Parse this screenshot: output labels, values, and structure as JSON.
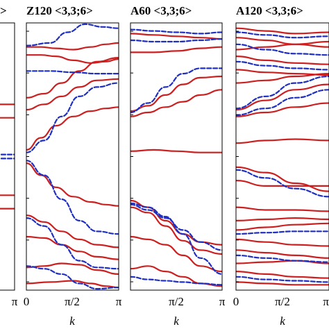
{
  "chart_data": [
    {
      "type": "line",
      "title": "",
      "xlabel": "",
      "x_ticks": [
        "π"
      ],
      "xlim": [
        0,
        3.1416
      ],
      "ylim": [
        -1,
        1
      ],
      "colors": {
        "solid": "#cc1f1f",
        "dashed": "#1f2fbf"
      },
      "series": [
        {
          "style": "solid",
          "x": [
            0,
            3.1416
          ],
          "y": [
            0.39,
            0.39
          ]
        },
        {
          "style": "solid",
          "x": [
            0,
            3.1416
          ],
          "y": [
            0.29,
            0.29
          ]
        },
        {
          "style": "solid",
          "x": [
            0,
            3.1416
          ],
          "y": [
            -0.29,
            -0.29
          ]
        },
        {
          "style": "solid",
          "x": [
            0,
            3.1416
          ],
          "y": [
            -0.39,
            -0.39
          ]
        },
        {
          "style": "dashed",
          "x": [
            0,
            3.1416
          ],
          "y": [
            0.015,
            0.015
          ]
        },
        {
          "style": "dashed",
          "x": [
            0,
            3.1416
          ],
          "y": [
            -0.015,
            -0.015
          ]
        }
      ]
    },
    {
      "type": "line",
      "title": "Z120 <3,3;6>",
      "xlabel": "k",
      "x_ticks": [
        "0",
        "π/2",
        "π"
      ],
      "xlim": [
        0,
        3.1416
      ],
      "ylim": [
        -1,
        1
      ],
      "colors": {
        "solid": "#cc1f1f",
        "dashed": "#1f2fbf"
      },
      "series": [
        {
          "style": "solid",
          "x": [
            0,
            0.5,
            1.0,
            1.6,
            2.2,
            2.7,
            3.1416
          ],
          "y": [
            0.82,
            0.82,
            0.81,
            0.8,
            0.82,
            0.84,
            0.85
          ]
        },
        {
          "style": "solid",
          "x": [
            0,
            0.5,
            1.0,
            1.6,
            2.2,
            2.7,
            3.1416
          ],
          "y": [
            0.76,
            0.76,
            0.75,
            0.72,
            0.7,
            0.71,
            0.73
          ]
        },
        {
          "style": "solid",
          "x": [
            0,
            0.6,
            1.2,
            1.8,
            2.4,
            3.1416
          ],
          "y": [
            0.44,
            0.47,
            0.55,
            0.64,
            0.71,
            0.74
          ]
        },
        {
          "style": "solid",
          "x": [
            0,
            0.6,
            1.2,
            1.8,
            2.4,
            3.1416
          ],
          "y": [
            0.35,
            0.39,
            0.45,
            0.52,
            0.57,
            0.58
          ]
        },
        {
          "style": "solid",
          "x": [
            0,
            0.5,
            1.0,
            1.6,
            2.2,
            2.7,
            3.1416
          ],
          "y": [
            0.05,
            0.14,
            0.23,
            0.3,
            0.34,
            0.36,
            0.37
          ]
        },
        {
          "style": "solid",
          "x": [
            0,
            0.5,
            1.0,
            1.6,
            2.2,
            2.7,
            3.1416
          ],
          "y": [
            -0.05,
            -0.14,
            -0.23,
            -0.3,
            -0.34,
            -0.36,
            -0.37
          ]
        },
        {
          "style": "solid",
          "x": [
            0,
            0.6,
            1.2,
            1.8,
            2.4,
            3.1416
          ],
          "y": [
            -0.44,
            -0.49,
            -0.56,
            -0.62,
            -0.66,
            -0.68
          ]
        },
        {
          "style": "solid",
          "x": [
            0,
            0.6,
            1.2,
            1.8,
            2.4,
            3.1416
          ],
          "y": [
            -0.6,
            -0.61,
            -0.66,
            -0.71,
            -0.75,
            -0.77
          ]
        },
        {
          "style": "solid",
          "x": [
            0,
            0.6,
            1.2,
            1.8,
            2.4,
            3.1416
          ],
          "y": [
            -0.83,
            -0.82,
            -0.8,
            -0.81,
            -0.85,
            -0.88
          ]
        },
        {
          "style": "solid",
          "x": [
            0,
            0.8,
            1.6,
            2.2,
            2.7,
            3.1416
          ],
          "y": [
            -0.95,
            -0.94,
            -0.93,
            -0.95,
            -0.97,
            -0.98
          ]
        },
        {
          "style": "dashed",
          "x": [
            0,
            0.8,
            1.4,
            2.0,
            2.6,
            3.1416
          ],
          "y": [
            0.83,
            0.85,
            0.93,
            0.99,
            0.97,
            0.96
          ]
        },
        {
          "style": "dashed",
          "x": [
            0,
            0.8,
            1.6,
            2.4,
            3.1416
          ],
          "y": [
            0.64,
            0.64,
            0.63,
            0.62,
            0.62
          ]
        },
        {
          "style": "dashed",
          "x": [
            0,
            0.6,
            1.2,
            1.8,
            2.4,
            3.1416
          ],
          "y": [
            0.03,
            0.12,
            0.3,
            0.45,
            0.52,
            0.55
          ]
        },
        {
          "style": "dashed",
          "x": [
            0,
            0.6,
            1.2,
            1.8,
            2.4,
            3.1416
          ],
          "y": [
            -0.03,
            -0.14,
            -0.32,
            -0.48,
            -0.56,
            -0.58
          ]
        },
        {
          "style": "dashed",
          "x": [
            0,
            0.6,
            1.2,
            1.8,
            2.4,
            3.1416
          ],
          "y": [
            -0.46,
            -0.52,
            -0.66,
            -0.78,
            -0.83,
            -0.84
          ]
        },
        {
          "style": "dashed",
          "x": [
            0,
            0.6,
            1.2,
            1.8,
            2.4,
            3.1416
          ],
          "y": [
            -0.82,
            -0.84,
            -0.88,
            -0.95,
            -0.99,
            -0.98
          ]
        }
      ]
    },
    {
      "type": "line",
      "title": "A60 <3,3;6>",
      "xlabel": "k",
      "x_ticks": [
        "π/2",
        "π"
      ],
      "xlim": [
        0,
        3.1416
      ],
      "ylim": [
        -1,
        1
      ],
      "colors": {
        "solid": "#cc1f1f",
        "dashed": "#1f2fbf"
      },
      "series": [
        {
          "style": "solid",
          "x": [
            0,
            0.8,
            1.6,
            2.4,
            3.1416
          ],
          "y": [
            0.92,
            0.91,
            0.9,
            0.89,
            0.88
          ]
        },
        {
          "style": "solid",
          "x": [
            0,
            0.8,
            1.6,
            2.4,
            3.1416
          ],
          "y": [
            0.78,
            0.78,
            0.79,
            0.81,
            0.82
          ]
        },
        {
          "style": "solid",
          "x": [
            0,
            0.6,
            1.2,
            1.8,
            2.4,
            3.1416
          ],
          "y": [
            0.34,
            0.38,
            0.46,
            0.54,
            0.59,
            0.6
          ]
        },
        {
          "style": "solid",
          "x": [
            0,
            0.6,
            1.2,
            1.8,
            2.4,
            3.1416
          ],
          "y": [
            0.3,
            0.33,
            0.37,
            0.41,
            0.46,
            0.5
          ]
        },
        {
          "style": "solid",
          "x": [
            0,
            0.8,
            1.6,
            2.4,
            3.1416
          ],
          "y": [
            0.04,
            0.05,
            0.04,
            0.03,
            0.03
          ]
        },
        {
          "style": "solid",
          "x": [
            0,
            0.6,
            1.2,
            1.8,
            2.4,
            3.1416
          ],
          "y": [
            -0.33,
            -0.38,
            -0.48,
            -0.58,
            -0.64,
            -0.66
          ]
        },
        {
          "style": "solid",
          "x": [
            0,
            0.6,
            1.2,
            1.8,
            2.4,
            3.1416
          ],
          "y": [
            -0.38,
            -0.42,
            -0.52,
            -0.63,
            -0.7,
            -0.73
          ]
        },
        {
          "style": "solid",
          "x": [
            0,
            0.6,
            1.2,
            1.8,
            2.4,
            3.1416
          ],
          "y": [
            -0.6,
            -0.62,
            -0.66,
            -0.74,
            -0.82,
            -0.86
          ]
        },
        {
          "style": "solid",
          "x": [
            0,
            0.6,
            1.2,
            1.8,
            2.4,
            3.1416
          ],
          "y": [
            -0.84,
            -0.82,
            -0.86,
            -0.9,
            -0.95,
            -0.97
          ]
        },
        {
          "style": "dashed",
          "x": [
            0,
            0.8,
            1.6,
            2.4,
            3.1416
          ],
          "y": [
            0.95,
            0.94,
            0.93,
            0.92,
            0.93
          ]
        },
        {
          "style": "dashed",
          "x": [
            0,
            0.8,
            1.6,
            2.4,
            3.1416
          ],
          "y": [
            0.87,
            0.86,
            0.86,
            0.87,
            0.88
          ]
        },
        {
          "style": "dashed",
          "x": [
            0,
            0.6,
            1.2,
            1.8,
            2.4,
            3.1416
          ],
          "y": [
            0.33,
            0.4,
            0.52,
            0.62,
            0.66,
            0.66
          ]
        },
        {
          "style": "dashed",
          "x": [
            0,
            0.6,
            1.2,
            1.8,
            2.4,
            3.1416
          ],
          "y": [
            -0.35,
            -0.38,
            -0.45,
            -0.58,
            -0.76,
            -0.88
          ]
        },
        {
          "style": "dashed",
          "x": [
            0,
            0.6,
            1.2,
            1.8,
            2.4,
            3.1416
          ],
          "y": [
            -0.36,
            -0.4,
            -0.46,
            -0.55,
            -0.64,
            -0.7
          ]
        },
        {
          "style": "dashed",
          "x": [
            0,
            0.6,
            1.2,
            1.8,
            2.4,
            3.1416
          ],
          "y": [
            -0.9,
            -0.92,
            -0.93,
            -0.94,
            -0.95,
            -0.96
          ]
        }
      ]
    },
    {
      "type": "line",
      "title": "A120 <3,3;6>",
      "xlabel": "k",
      "x_ticks": [
        "0",
        "π/2",
        "π"
      ],
      "xlim": [
        0,
        3.1416
      ],
      "ylim": [
        -1,
        1
      ],
      "colors": {
        "solid": "#cc1f1f",
        "dashed": "#1f2fbf"
      },
      "series": [
        {
          "style": "solid",
          "x": [
            0,
            1.0,
            2.0,
            3.1416
          ],
          "y": [
            0.96,
            0.94,
            0.92,
            0.93
          ]
        },
        {
          "style": "solid",
          "x": [
            0,
            1.0,
            2.0,
            3.1416
          ],
          "y": [
            0.89,
            0.87,
            0.84,
            0.82
          ]
        },
        {
          "style": "solid",
          "x": [
            0,
            1.0,
            2.0,
            3.1416
          ],
          "y": [
            0.8,
            0.82,
            0.84,
            0.86
          ]
        },
        {
          "style": "solid",
          "x": [
            0,
            1.0,
            2.0,
            3.1416
          ],
          "y": [
            0.75,
            0.72,
            0.7,
            0.69
          ]
        },
        {
          "style": "solid",
          "x": [
            0,
            1.0,
            2.0,
            3.1416
          ],
          "y": [
            0.65,
            0.63,
            0.62,
            0.61
          ]
        },
        {
          "style": "solid",
          "x": [
            0,
            1.0,
            2.0,
            3.1416
          ],
          "y": [
            0.55,
            0.57,
            0.6,
            0.62
          ]
        },
        {
          "style": "solid",
          "x": [
            0,
            1.0,
            2.0,
            3.1416
          ],
          "y": [
            0.35,
            0.42,
            0.5,
            0.54
          ]
        },
        {
          "style": "solid",
          "x": [
            0,
            1.0,
            2.0,
            3.1416
          ],
          "y": [
            0.3,
            0.33,
            0.37,
            0.4
          ]
        },
        {
          "style": "solid",
          "x": [
            0,
            1.0,
            2.0,
            3.1416
          ],
          "y": [
            0.1,
            0.12,
            0.13,
            0.12
          ]
        },
        {
          "style": "solid",
          "x": [
            0,
            1.0,
            2.0,
            3.1416
          ],
          "y": [
            -0.08,
            -0.12,
            -0.2,
            -0.26
          ]
        },
        {
          "style": "solid",
          "x": [
            0,
            1.0,
            2.0,
            3.1416
          ],
          "y": [
            -0.18,
            -0.22,
            -0.22,
            -0.22
          ]
        },
        {
          "style": "solid",
          "x": [
            0,
            1.0,
            2.0,
            3.1416
          ],
          "y": [
            -0.38,
            -0.4,
            -0.4,
            -0.41
          ]
        },
        {
          "style": "solid",
          "x": [
            0,
            1.0,
            2.0,
            3.1416
          ],
          "y": [
            -0.48,
            -0.47,
            -0.46,
            -0.47
          ]
        },
        {
          "style": "solid",
          "x": [
            0,
            1.0,
            2.0,
            3.1416
          ],
          "y": [
            -0.55,
            -0.53,
            -0.51,
            -0.5
          ]
        },
        {
          "style": "solid",
          "x": [
            0,
            1.0,
            2.0,
            3.1416
          ],
          "y": [
            -0.62,
            -0.64,
            -0.66,
            -0.67
          ]
        },
        {
          "style": "solid",
          "x": [
            0,
            1.0,
            2.0,
            3.1416
          ],
          "y": [
            -0.7,
            -0.72,
            -0.74,
            -0.76
          ]
        },
        {
          "style": "solid",
          "x": [
            0,
            1.0,
            2.0,
            3.1416
          ],
          "y": [
            -0.8,
            -0.79,
            -0.78,
            -0.8
          ]
        },
        {
          "style": "solid",
          "x": [
            0,
            1.0,
            2.0,
            3.1416
          ],
          "y": [
            -0.86,
            -0.88,
            -0.9,
            -0.91
          ]
        },
        {
          "style": "solid",
          "x": [
            0,
            1.0,
            2.0,
            3.1416
          ],
          "y": [
            -0.94,
            -0.95,
            -0.96,
            -0.96
          ]
        },
        {
          "style": "dashed",
          "x": [
            0,
            1.0,
            2.0,
            3.1416
          ],
          "y": [
            0.93,
            0.91,
            0.89,
            0.9
          ]
        },
        {
          "style": "dashed",
          "x": [
            0,
            1.0,
            2.0,
            3.1416
          ],
          "y": [
            0.84,
            0.8,
            0.77,
            0.76
          ]
        },
        {
          "style": "dashed",
          "x": [
            0,
            1.0,
            2.0,
            3.1416
          ],
          "y": [
            0.71,
            0.68,
            0.66,
            0.65
          ]
        },
        {
          "style": "dashed",
          "x": [
            0,
            1.0,
            2.0,
            3.1416
          ],
          "y": [
            0.36,
            0.45,
            0.55,
            0.6
          ]
        },
        {
          "style": "dashed",
          "x": [
            0,
            1.0,
            2.0,
            3.1416
          ],
          "y": [
            0.31,
            0.36,
            0.44,
            0.5
          ]
        },
        {
          "style": "dashed",
          "x": [
            0,
            1.0,
            2.0,
            3.1416
          ],
          "y": [
            -0.1,
            -0.16,
            -0.24,
            -0.3
          ]
        },
        {
          "style": "dashed",
          "x": [
            0,
            1.0,
            2.0,
            3.1416
          ],
          "y": [
            -0.58,
            -0.57,
            -0.56,
            -0.56
          ]
        },
        {
          "style": "dashed",
          "x": [
            0,
            1.0,
            2.0,
            3.1416
          ],
          "y": [
            -0.74,
            -0.76,
            -0.78,
            -0.79
          ]
        },
        {
          "style": "dashed",
          "x": [
            0,
            1.0,
            2.0,
            3.1416
          ],
          "y": [
            -0.9,
            -0.92,
            -0.93,
            -0.94
          ]
        }
      ]
    }
  ]
}
